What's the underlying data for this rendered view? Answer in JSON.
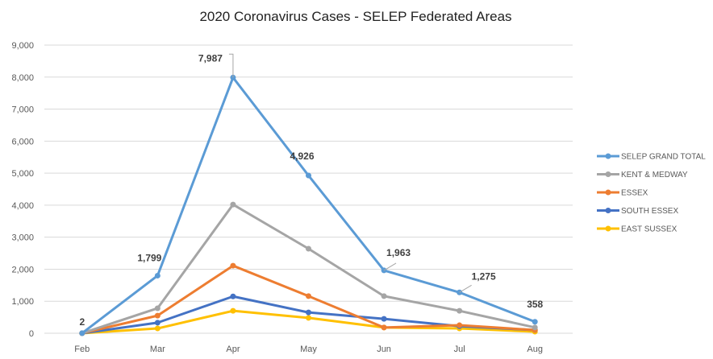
{
  "chart_data": {
    "type": "line",
    "title": "2020 Coronavirus Cases - SELEP Federated Areas",
    "xlabel": "",
    "ylabel": "",
    "categories": [
      "Feb",
      "Mar",
      "Apr",
      "May",
      "Jun",
      "Jul",
      "Aug"
    ],
    "ylim": [
      0,
      9000
    ],
    "yticks": [
      0,
      1000,
      2000,
      3000,
      4000,
      5000,
      6000,
      7000,
      8000,
      9000
    ],
    "ytick_labels": [
      "0",
      "1,000",
      "2,000",
      "3,000",
      "4,000",
      "5,000",
      "6,000",
      "7,000",
      "8,000",
      "9,000"
    ],
    "grid": true,
    "legend_position": "right",
    "series": [
      {
        "name": "SELEP GRAND TOTAL",
        "color": "#5B9BD5",
        "values": [
          2,
          1799,
          7987,
          4926,
          1963,
          1275,
          358
        ],
        "data_labels": [
          "2",
          "1,799",
          "7,987",
          "4,926",
          "1,963",
          "1,275",
          "358"
        ]
      },
      {
        "name": "KENT  & MEDWAY",
        "color": "#A5A5A5",
        "values": [
          1,
          780,
          4020,
          2640,
          1160,
          700,
          180
        ]
      },
      {
        "name": "ESSEX",
        "color": "#ED7D31",
        "values": [
          1,
          550,
          2110,
          1160,
          180,
          250,
          100
        ]
      },
      {
        "name": "SOUTH ESSEX",
        "color": "#4472C4",
        "values": [
          0,
          330,
          1150,
          650,
          450,
          220,
          100
        ]
      },
      {
        "name": "EAST SUSSEX",
        "color": "#FFC000",
        "values": [
          0,
          150,
          700,
          480,
          180,
          150,
          50
        ]
      }
    ]
  }
}
